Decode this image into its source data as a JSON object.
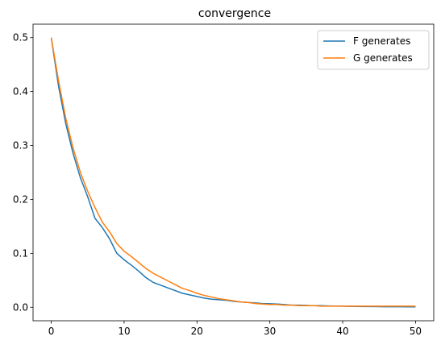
{
  "chart_data": {
    "type": "line",
    "title": "convergence",
    "x": [
      0,
      1,
      2,
      3,
      4,
      5,
      6,
      7,
      8,
      9,
      10,
      11,
      12,
      13,
      14,
      15,
      16,
      17,
      18,
      19,
      20,
      21,
      22,
      23,
      24,
      25,
      26,
      27,
      28,
      29,
      30,
      31,
      32,
      33,
      34,
      35,
      36,
      37,
      38,
      39,
      40,
      41,
      42,
      43,
      44,
      45,
      46,
      47,
      48,
      49,
      50
    ],
    "series": [
      {
        "name": "F generates",
        "color": "#1f77b4",
        "values": [
          0.5,
          0.41,
          0.34,
          0.285,
          0.24,
          0.205,
          0.165,
          0.148,
          0.127,
          0.1,
          0.088,
          0.078,
          0.067,
          0.055,
          0.046,
          0.041,
          0.036,
          0.031,
          0.026,
          0.023,
          0.02,
          0.017,
          0.015,
          0.014,
          0.013,
          0.011,
          0.01,
          0.009,
          0.008,
          0.007,
          0.0065,
          0.006,
          0.005,
          0.004,
          0.004,
          0.0035,
          0.003,
          0.003,
          0.0025,
          0.0022,
          0.002,
          0.0018,
          0.0015,
          0.0014,
          0.0013,
          0.0012,
          0.001,
          0.001,
          0.0009,
          0.0008,
          0.0008
        ]
      },
      {
        "name": "G generates",
        "color": "#ff7f0e",
        "values": [
          0.5,
          0.42,
          0.35,
          0.295,
          0.25,
          0.215,
          0.185,
          0.158,
          0.14,
          0.118,
          0.104,
          0.094,
          0.083,
          0.072,
          0.063,
          0.056,
          0.049,
          0.042,
          0.035,
          0.031,
          0.026,
          0.022,
          0.019,
          0.016,
          0.014,
          0.012,
          0.01,
          0.009,
          0.007,
          0.006,
          0.005,
          0.005,
          0.004,
          0.004,
          0.003,
          0.003,
          0.003,
          0.002,
          0.002,
          0.002,
          0.002,
          0.002,
          0.002,
          0.002,
          0.002,
          0.002,
          0.002,
          0.002,
          0.002,
          0.002,
          0.002
        ]
      }
    ],
    "xlim": [
      -2.5,
      52.5
    ],
    "ylim": [
      -0.025,
      0.525
    ],
    "xticks": [
      0,
      10,
      20,
      30,
      40,
      50
    ],
    "yticks": [
      {
        "value": 0,
        "label": "0.0"
      },
      0.1,
      0.2,
      0.3,
      0.4,
      0.5
    ],
    "legend": "upper right"
  }
}
